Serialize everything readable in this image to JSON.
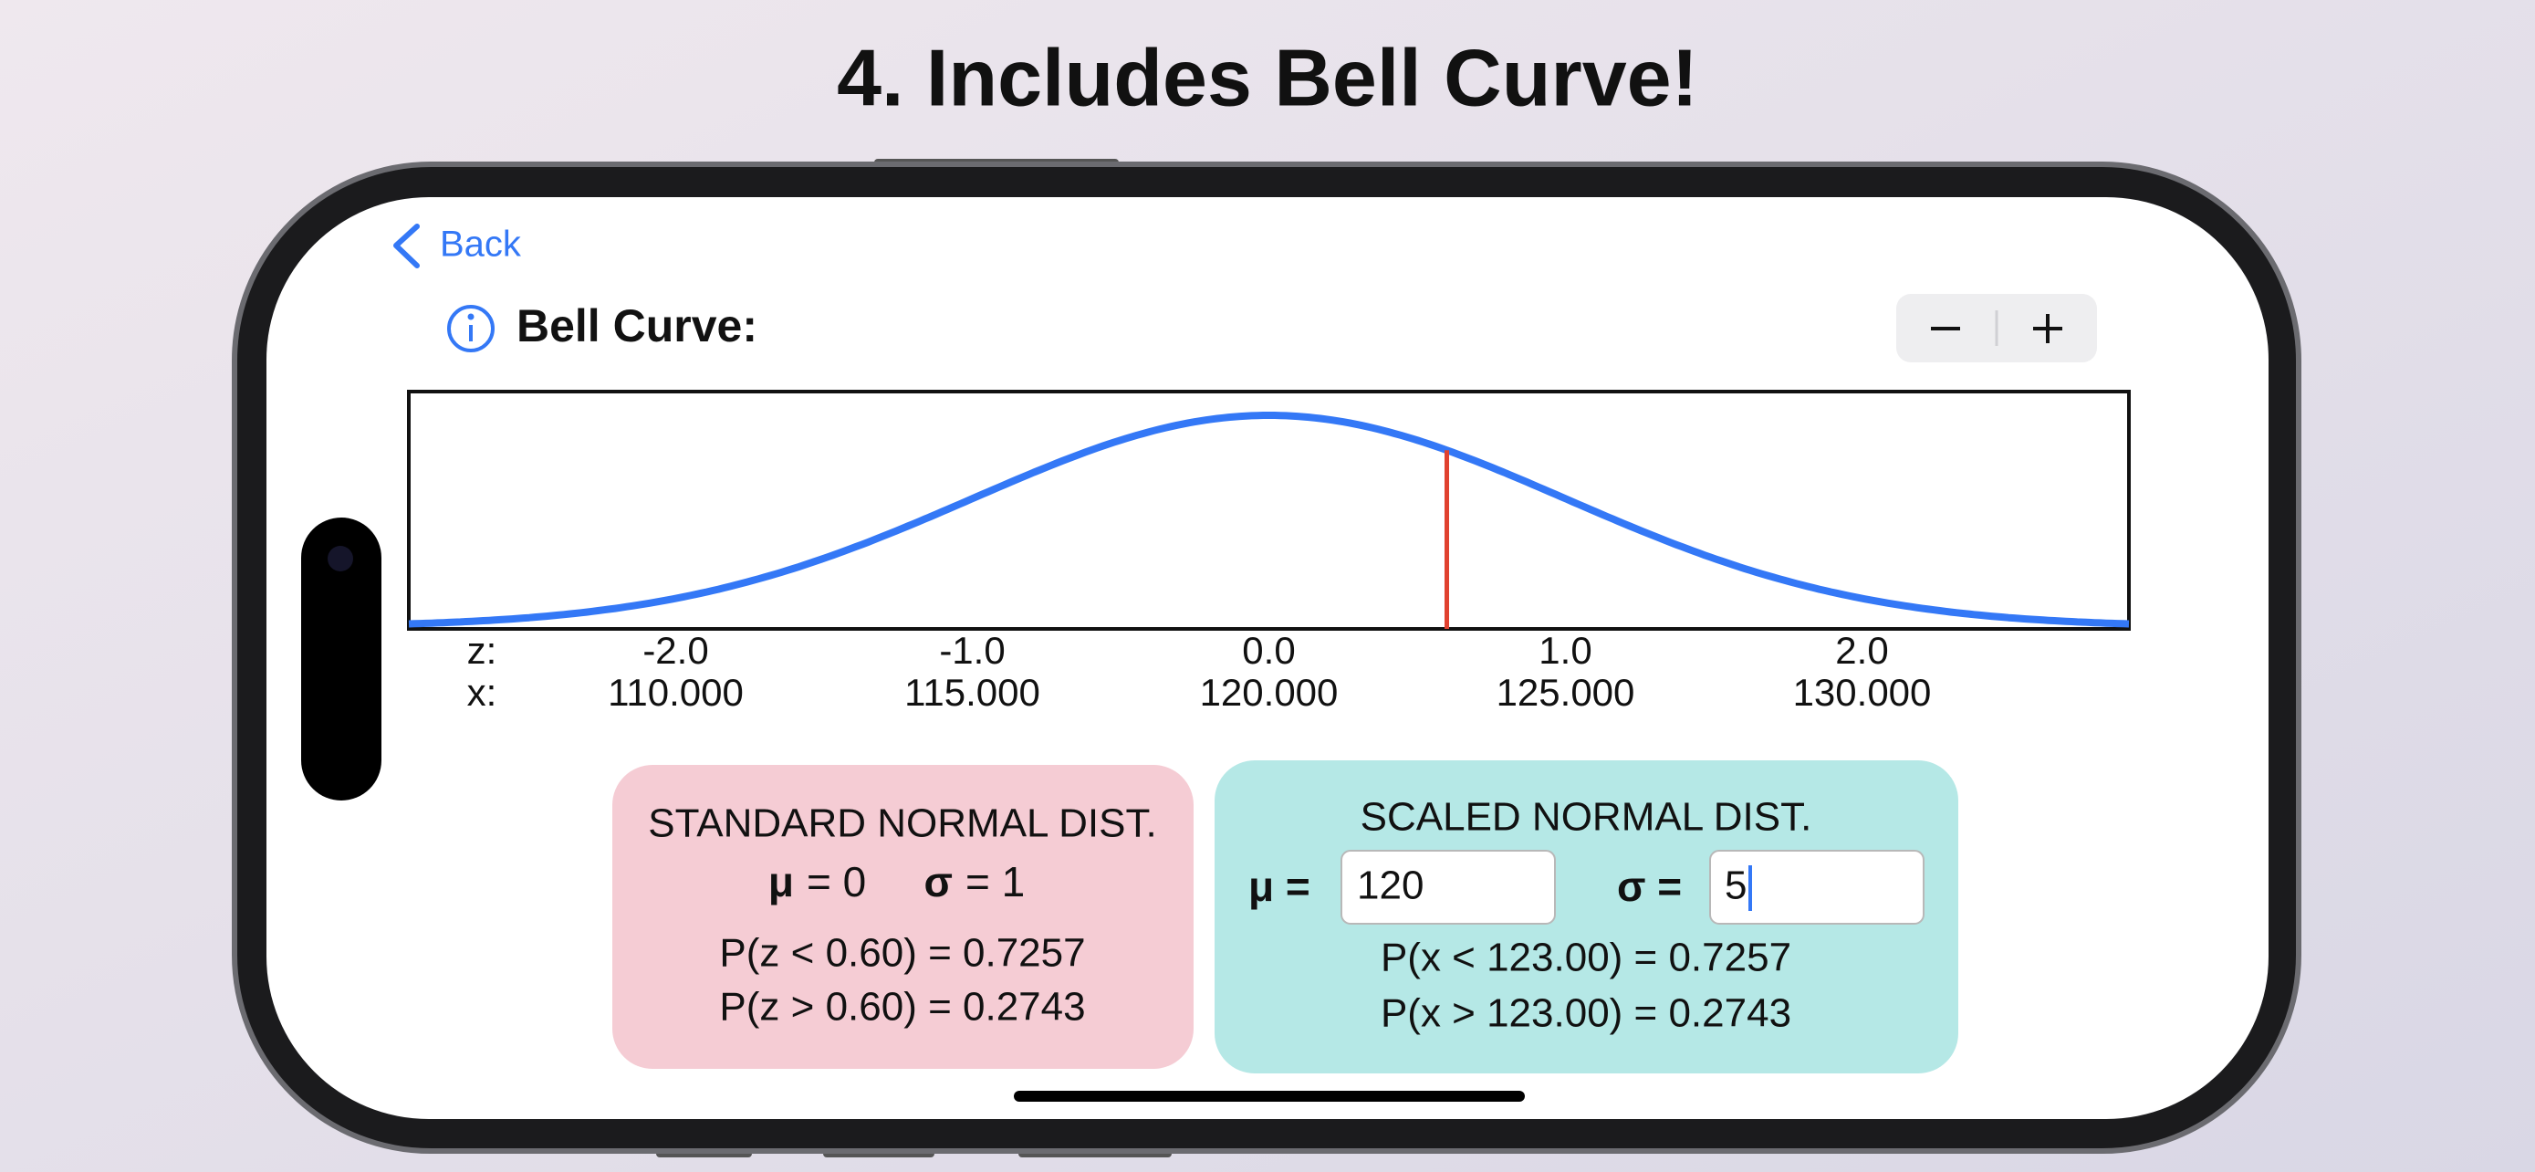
{
  "title": "4. Includes Bell Curve!",
  "nav": {
    "back": "Back"
  },
  "header": {
    "title": "Bell Curve:"
  },
  "chart": {
    "type": "line",
    "zlim": [
      -2.9,
      2.9
    ],
    "z_axis_label": "z:",
    "x_axis_label": "x:",
    "zticks": [
      {
        "value": -2,
        "label": "-2.0"
      },
      {
        "value": -1,
        "label": "-1.0"
      },
      {
        "value": 0,
        "label": "0.0"
      },
      {
        "value": 1,
        "label": "1.0"
      },
      {
        "value": 2,
        "label": "2.0"
      }
    ],
    "xticks": [
      {
        "value": 110,
        "label": "110.000"
      },
      {
        "value": 115,
        "label": "115.000"
      },
      {
        "value": 120,
        "label": "120.000"
      },
      {
        "value": 125,
        "label": "125.000"
      },
      {
        "value": 130,
        "label": "130.000"
      }
    ],
    "line_color": "#3478f6",
    "marker_z": 0.6,
    "marker_color": "#e0412f"
  },
  "standard": {
    "title": "STANDARD NORMAL DIST.",
    "mu_symbol": "μ",
    "mu_text": "= 0",
    "sigma_symbol": "σ",
    "sigma_text": "= 1",
    "p_less": "P(z < 0.60) = 0.7257",
    "p_greater": "P(z > 0.60) = 0.2743"
  },
  "scaled": {
    "title": "SCALED NORMAL DIST.",
    "mu_label": "μ =",
    "mu_input": "120",
    "sigma_label": "σ =",
    "sigma_input": "5",
    "p_less": "P(x < 123.00) = 0.7257",
    "p_greater": "P(x > 123.00) = 0.2743"
  }
}
